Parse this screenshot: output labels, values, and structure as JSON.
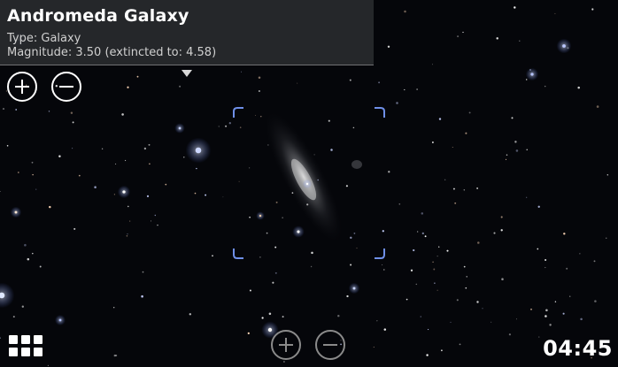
{
  "info": {
    "title": "Andromeda Galaxy",
    "type_line": "Type: Galaxy",
    "magnitude_line": "Magnitude: 3.50 (extincted to: 4.58)"
  },
  "clock": {
    "time": "04:45"
  },
  "icons": {
    "zoom_in": "plus-circle-icon",
    "zoom_out": "minus-circle-icon",
    "menu": "grid-menu-icon",
    "dropdown": "triangle-down-icon"
  },
  "colors": {
    "sky": "#05060a",
    "reticle": "#6f8fe8",
    "panel": "#282a2e"
  }
}
